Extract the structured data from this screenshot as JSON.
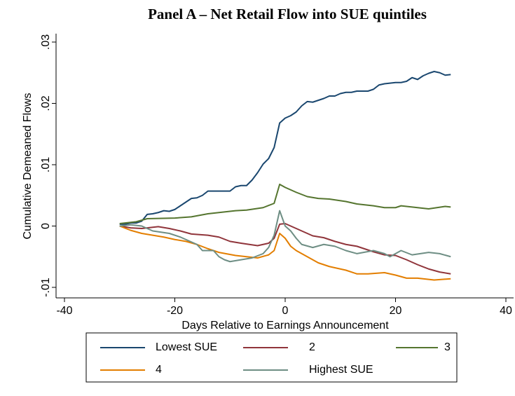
{
  "chart_data": {
    "type": "line",
    "title": "Panel A – Net Retail Flow into SUE quintiles",
    "x_label": "Days Relative to Earnings Announcement",
    "y_label": "Cumulative Demeaned Flows",
    "xlim": [
      -40,
      40
    ],
    "xticks": [
      -40,
      -20,
      0,
      20,
      40
    ],
    "ylim": [
      -0.01,
      0.03
    ],
    "yticks": [
      {
        "value": -0.01,
        "label": "-.01"
      },
      0,
      {
        "value": 0.01,
        "label": ".01"
      },
      {
        "value": 0.02,
        "label": ".02"
      },
      {
        "value": 0.03,
        "label": ".03"
      }
    ],
    "grid": false,
    "series": [
      {
        "name": "Lowest SUE",
        "color": "#1a476f",
        "x": [
          -30,
          -29,
          -28,
          -27,
          -26,
          -25,
          -24,
          -23,
          -22,
          -21,
          -20,
          -19,
          -18,
          -17,
          -16,
          -15,
          -14,
          -13,
          -12,
          -11,
          -10,
          -9,
          -8,
          -7,
          -6,
          -5,
          -4,
          -3,
          -2,
          -1,
          0,
          1,
          2,
          3,
          4,
          5,
          6,
          7,
          8,
          9,
          10,
          11,
          12,
          13,
          14,
          15,
          16,
          17,
          18,
          19,
          20,
          21,
          22,
          23,
          24,
          25,
          26,
          27,
          28,
          29,
          30
        ],
        "values": [
          0.0003,
          0.0003,
          0.0005,
          0.0005,
          0.0008,
          0.0019,
          0.002,
          0.0022,
          0.0025,
          0.0024,
          0.0027,
          0.0033,
          0.0039,
          0.0045,
          0.0046,
          0.005,
          0.0057,
          0.0057,
          0.0057,
          0.0057,
          0.0057,
          0.0064,
          0.0066,
          0.0066,
          0.0075,
          0.0087,
          0.0101,
          0.011,
          0.0128,
          0.0168,
          0.0176,
          0.018,
          0.0186,
          0.0196,
          0.0203,
          0.0202,
          0.0205,
          0.0208,
          0.0212,
          0.0212,
          0.0216,
          0.0218,
          0.0218,
          0.022,
          0.022,
          0.022,
          0.0223,
          0.023,
          0.0232,
          0.0233,
          0.0234,
          0.0234,
          0.0236,
          0.0242,
          0.0239,
          0.0245,
          0.0249,
          0.0252,
          0.025,
          0.0246,
          0.0247
        ]
      },
      {
        "name": "2",
        "color": "#90353b",
        "x": [
          -30,
          -28,
          -26,
          -24,
          -23,
          -21,
          -19,
          -17,
          -14,
          -12,
          -10,
          -8,
          -5,
          -3,
          -2,
          -1,
          0,
          1,
          3,
          5,
          7,
          9,
          11,
          13,
          16,
          18,
          20,
          22,
          24,
          26,
          28,
          30
        ],
        "values": [
          0,
          -0.0003,
          -0.0004,
          -0.0002,
          -0.0001,
          -0.0004,
          -0.0008,
          -0.0013,
          -0.0015,
          -0.0018,
          -0.0025,
          -0.0028,
          -0.0032,
          -0.0028,
          -0.002,
          0.0003,
          0.0004,
          0,
          -0.0008,
          -0.0016,
          -0.0019,
          -0.0025,
          -0.003,
          -0.0033,
          -0.0042,
          -0.0047,
          -0.0048,
          -0.0055,
          -0.0063,
          -0.007,
          -0.0075,
          -0.0078
        ]
      },
      {
        "name": "3",
        "color": "#55752f",
        "x": [
          -30,
          -27,
          -25,
          -20,
          -17,
          -14,
          -12,
          -9,
          -7,
          -4,
          -2,
          -1,
          0,
          2,
          4,
          6,
          8,
          11,
          13,
          16,
          18,
          20,
          21,
          24,
          26,
          29,
          30
        ],
        "values": [
          0.0004,
          0.0007,
          0.0012,
          0.0013,
          0.0015,
          0.002,
          0.0022,
          0.0025,
          0.0026,
          0.003,
          0.0037,
          0.0068,
          0.0063,
          0.0055,
          0.0048,
          0.0045,
          0.0044,
          0.004,
          0.0036,
          0.0033,
          0.003,
          0.003,
          0.0033,
          0.003,
          0.0028,
          0.0032,
          0.0031
        ]
      },
      {
        "name": "4",
        "color": "#e37e00",
        "x": [
          -30,
          -28,
          -26,
          -24,
          -22,
          -20,
          -18,
          -16,
          -14,
          -12,
          -9,
          -7,
          -5,
          -3,
          -2,
          -1,
          0,
          1,
          2,
          4,
          6,
          8,
          11,
          13,
          15,
          18,
          20,
          22,
          24,
          27,
          30
        ],
        "values": [
          0,
          -0.0007,
          -0.0012,
          -0.0015,
          -0.0018,
          -0.0022,
          -0.0025,
          -0.003,
          -0.0037,
          -0.0043,
          -0.0048,
          -0.005,
          -0.0052,
          -0.0047,
          -0.004,
          -0.0012,
          -0.002,
          -0.0033,
          -0.004,
          -0.005,
          -0.006,
          -0.0066,
          -0.0072,
          -0.0078,
          -0.0078,
          -0.0076,
          -0.008,
          -0.0085,
          -0.0085,
          -0.0088,
          -0.0086
        ]
      },
      {
        "name": "Highest SUE",
        "color": "#6e8e84",
        "x": [
          -30,
          -28,
          -26,
          -24,
          -21,
          -19,
          -16,
          -15,
          -13,
          -12,
          -11,
          -10,
          -8,
          -6,
          -4,
          -3,
          -2,
          -1,
          0,
          1,
          2,
          3,
          5,
          7,
          9,
          11,
          13,
          16,
          18,
          19,
          20,
          21,
          23,
          26,
          28,
          30
        ],
        "values": [
          0,
          0.0002,
          0,
          -0.0008,
          -0.0012,
          -0.0018,
          -0.003,
          -0.004,
          -0.004,
          -0.005,
          -0.0055,
          -0.0058,
          -0.0055,
          -0.0052,
          -0.0045,
          -0.0035,
          -0.0015,
          0.0025,
          0,
          -0.0008,
          -0.002,
          -0.003,
          -0.0035,
          -0.003,
          -0.0033,
          -0.004,
          -0.0045,
          -0.004,
          -0.0045,
          -0.005,
          -0.0045,
          -0.004,
          -0.0047,
          -0.0043,
          -0.0045,
          -0.005
        ]
      }
    ]
  }
}
